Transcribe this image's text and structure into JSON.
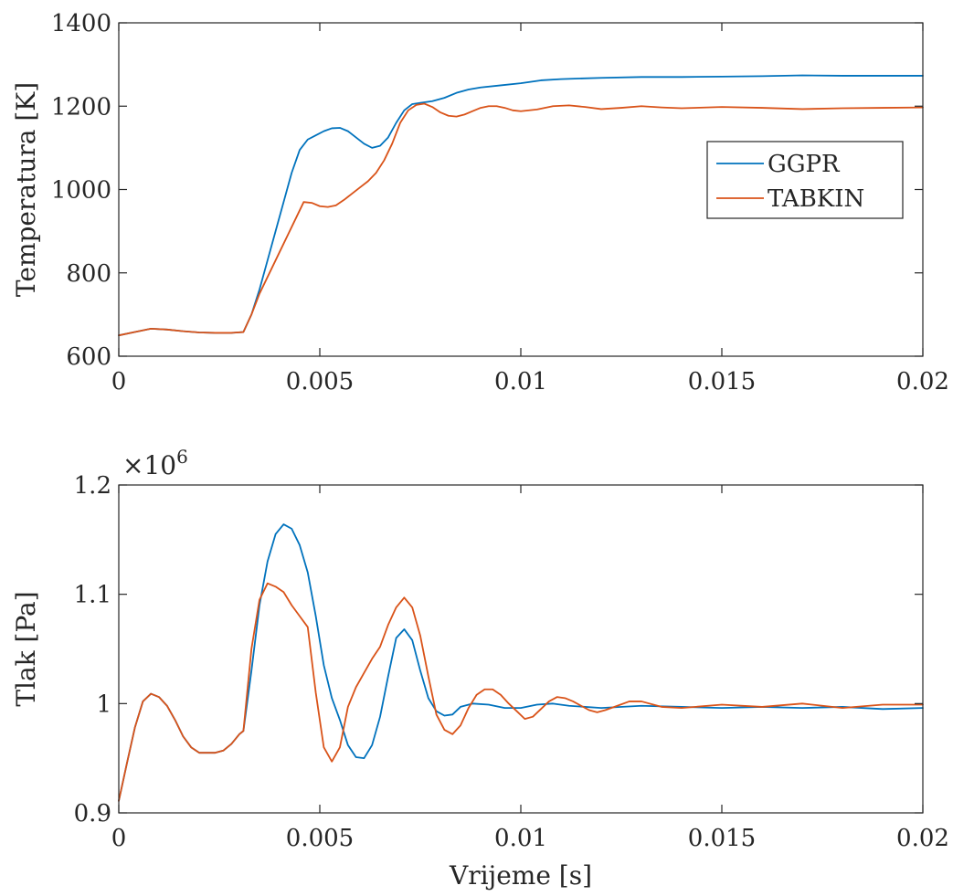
{
  "colors": {
    "GGPR": "#0072BD",
    "TABKIN": "#D95319",
    "axis": "#262626"
  },
  "chart_data": [
    {
      "type": "line",
      "title": "",
      "xlabel": "",
      "ylabel": "Temperatura [K]",
      "xlim": [
        0,
        0.02
      ],
      "ylim": [
        600,
        1400
      ],
      "xticks": [
        0,
        0.005,
        0.01,
        0.015,
        0.02
      ],
      "xtick_labels": [
        "0",
        "0.005",
        "0.01",
        "0.015",
        "0.02"
      ],
      "yticks": [
        600,
        800,
        1000,
        1200,
        1400
      ],
      "ytick_labels": [
        "600",
        "800",
        "1000",
        "1200",
        "1400"
      ],
      "grid": false,
      "legend": {
        "position": "right",
        "entries": [
          "GGPR",
          "TABKIN"
        ]
      },
      "series": [
        {
          "name": "GGPR",
          "x": [
            0,
            0.0004,
            0.0008,
            0.0012,
            0.0016,
            0.002,
            0.0024,
            0.0028,
            0.0031,
            0.0033,
            0.0035,
            0.0037,
            0.0039,
            0.0041,
            0.0043,
            0.0045,
            0.0047,
            0.0049,
            0.0051,
            0.0053,
            0.0055,
            0.0057,
            0.0059,
            0.0061,
            0.0063,
            0.0065,
            0.0067,
            0.0069,
            0.0071,
            0.0073,
            0.0075,
            0.0078,
            0.0081,
            0.0084,
            0.0087,
            0.009,
            0.0095,
            0.01,
            0.0105,
            0.011,
            0.012,
            0.013,
            0.014,
            0.015,
            0.016,
            0.017,
            0.018,
            0.019,
            0.02
          ],
          "y": [
            650,
            658,
            666,
            664,
            660,
            657,
            656,
            656,
            658,
            700,
            760,
            830,
            900,
            970,
            1040,
            1095,
            1120,
            1130,
            1140,
            1147,
            1148,
            1140,
            1125,
            1110,
            1100,
            1105,
            1125,
            1160,
            1190,
            1205,
            1208,
            1212,
            1220,
            1232,
            1240,
            1245,
            1250,
            1255,
            1262,
            1265,
            1268,
            1270,
            1270,
            1271,
            1272,
            1274,
            1273,
            1273,
            1273
          ]
        },
        {
          "name": "TABKIN",
          "x": [
            0,
            0.0004,
            0.0008,
            0.0012,
            0.0016,
            0.002,
            0.0024,
            0.0028,
            0.0031,
            0.0033,
            0.0035,
            0.0037,
            0.0039,
            0.0041,
            0.0043,
            0.0045,
            0.0046,
            0.0048,
            0.005,
            0.0052,
            0.0054,
            0.0056,
            0.0058,
            0.006,
            0.0062,
            0.0064,
            0.0066,
            0.0068,
            0.007,
            0.0072,
            0.0074,
            0.0076,
            0.0078,
            0.008,
            0.0082,
            0.0084,
            0.0086,
            0.0088,
            0.009,
            0.0092,
            0.0094,
            0.0096,
            0.0098,
            0.01,
            0.0104,
            0.0108,
            0.0112,
            0.0116,
            0.012,
            0.0125,
            0.013,
            0.0135,
            0.014,
            0.015,
            0.016,
            0.017,
            0.018,
            0.019,
            0.02
          ],
          "y": [
            650,
            658,
            666,
            664,
            660,
            657,
            656,
            656,
            658,
            700,
            750,
            790,
            830,
            870,
            910,
            950,
            970,
            968,
            960,
            958,
            962,
            975,
            990,
            1005,
            1020,
            1040,
            1070,
            1110,
            1160,
            1190,
            1203,
            1206,
            1198,
            1185,
            1177,
            1175,
            1180,
            1188,
            1196,
            1200,
            1200,
            1196,
            1190,
            1188,
            1192,
            1200,
            1202,
            1198,
            1193,
            1196,
            1200,
            1197,
            1195,
            1198,
            1196,
            1193,
            1195,
            1196,
            1197
          ]
        }
      ]
    },
    {
      "type": "line",
      "title": "",
      "xlabel": "Vrijeme [s]",
      "ylabel": "Tlak [Pa]",
      "y_exponent": "×10",
      "y_exponent_power": "6",
      "xlim": [
        0,
        0.02
      ],
      "ylim": [
        0.9,
        1.2
      ],
      "xticks": [
        0,
        0.005,
        0.01,
        0.015,
        0.02
      ],
      "xtick_labels": [
        "0",
        "0.005",
        "0.01",
        "0.015",
        "0.02"
      ],
      "yticks": [
        0.9,
        1.0,
        1.1,
        1.2
      ],
      "ytick_labels": [
        "0.9",
        "1",
        "1.1",
        "1.2"
      ],
      "grid": false,
      "series": [
        {
          "name": "GGPR",
          "x": [
            0,
            0.0002,
            0.0004,
            0.0006,
            0.0008,
            0.001,
            0.0012,
            0.0014,
            0.0016,
            0.0018,
            0.002,
            0.0022,
            0.0024,
            0.0026,
            0.0028,
            0.003,
            0.0031,
            0.0033,
            0.0035,
            0.0037,
            0.0039,
            0.0041,
            0.0043,
            0.0045,
            0.0047,
            0.0049,
            0.0051,
            0.0053,
            0.0055,
            0.0057,
            0.0059,
            0.0061,
            0.0063,
            0.0065,
            0.0067,
            0.0069,
            0.0071,
            0.0073,
            0.0075,
            0.0077,
            0.0079,
            0.0081,
            0.0083,
            0.0085,
            0.0088,
            0.0092,
            0.0096,
            0.01,
            0.0104,
            0.0108,
            0.0112,
            0.012,
            0.013,
            0.014,
            0.015,
            0.016,
            0.017,
            0.018,
            0.019,
            0.02
          ],
          "y": [
            0.911,
            0.945,
            0.978,
            1.002,
            1.009,
            1.006,
            0.998,
            0.985,
            0.97,
            0.96,
            0.955,
            0.955,
            0.955,
            0.957,
            0.963,
            0.972,
            0.975,
            1.03,
            1.09,
            1.13,
            1.155,
            1.164,
            1.16,
            1.145,
            1.12,
            1.08,
            1.035,
            1.005,
            0.985,
            0.962,
            0.951,
            0.95,
            0.962,
            0.988,
            1.025,
            1.06,
            1.068,
            1.058,
            1.03,
            1.005,
            0.993,
            0.989,
            0.99,
            0.997,
            1.0,
            0.999,
            0.996,
            0.996,
            0.999,
            1.0,
            0.998,
            0.996,
            0.998,
            0.997,
            0.996,
            0.997,
            0.996,
            0.997,
            0.995,
            0.996
          ]
        },
        {
          "name": "TABKIN",
          "x": [
            0,
            0.0002,
            0.0004,
            0.0006,
            0.0008,
            0.001,
            0.0012,
            0.0014,
            0.0016,
            0.0018,
            0.002,
            0.0022,
            0.0024,
            0.0026,
            0.0028,
            0.003,
            0.0031,
            0.0033,
            0.0035,
            0.0037,
            0.0039,
            0.0041,
            0.0043,
            0.0045,
            0.0047,
            0.0049,
            0.0051,
            0.0053,
            0.0055,
            0.0057,
            0.0059,
            0.0061,
            0.0063,
            0.0065,
            0.0067,
            0.0069,
            0.0071,
            0.0073,
            0.0075,
            0.0077,
            0.0079,
            0.0081,
            0.0083,
            0.0085,
            0.0087,
            0.0089,
            0.0091,
            0.0093,
            0.0095,
            0.0097,
            0.0099,
            0.0101,
            0.0103,
            0.0105,
            0.0107,
            0.0109,
            0.0111,
            0.0113,
            0.0115,
            0.0117,
            0.0119,
            0.0121,
            0.0124,
            0.0127,
            0.013,
            0.0135,
            0.014,
            0.015,
            0.016,
            0.017,
            0.018,
            0.019,
            0.02
          ],
          "y": [
            0.911,
            0.945,
            0.978,
            1.002,
            1.009,
            1.006,
            0.998,
            0.985,
            0.97,
            0.96,
            0.955,
            0.955,
            0.955,
            0.957,
            0.963,
            0.972,
            0.975,
            1.05,
            1.095,
            1.11,
            1.107,
            1.102,
            1.09,
            1.08,
            1.07,
            1.01,
            0.96,
            0.947,
            0.96,
            0.997,
            1.015,
            1.028,
            1.041,
            1.052,
            1.072,
            1.088,
            1.097,
            1.088,
            1.062,
            1.025,
            0.99,
            0.976,
            0.972,
            0.98,
            0.996,
            1.008,
            1.013,
            1.013,
            1.008,
            1.0,
            0.993,
            0.986,
            0.988,
            0.995,
            1.002,
            1.006,
            1.005,
            1.002,
            0.998,
            0.994,
            0.992,
            0.994,
            0.998,
            1.002,
            1.002,
            0.997,
            0.996,
            0.999,
            0.997,
            1.0,
            0.996,
            0.999,
            0.999
          ]
        }
      ]
    }
  ]
}
